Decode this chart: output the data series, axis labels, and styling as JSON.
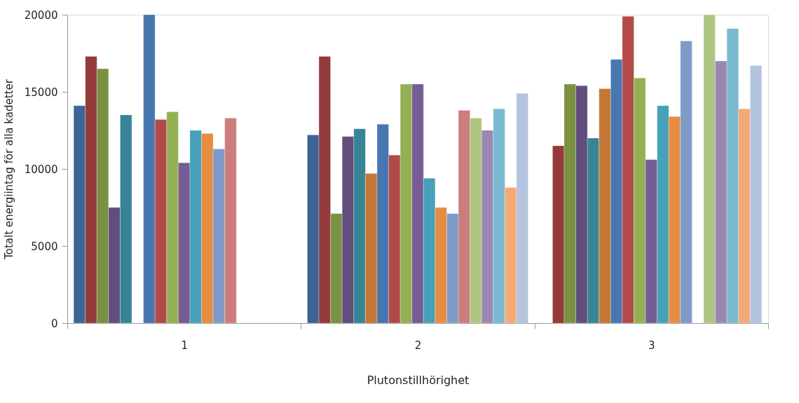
{
  "chart_data": {
    "type": "bar",
    "xlabel": "Plutonstillhörighet",
    "ylabel": "Totalt  energiintag för alla kadetter",
    "categories": [
      "1",
      "2",
      "3"
    ],
    "series": [
      {
        "color": "#3c6496",
        "values": [
          14100,
          12200,
          null
        ]
      },
      {
        "color": "#953a3a",
        "values": [
          17300,
          17300,
          11500
        ]
      },
      {
        "color": "#7b9142",
        "values": [
          16500,
          7100,
          15500
        ]
      },
      {
        "color": "#624d7c",
        "values": [
          7500,
          12100,
          15400
        ]
      },
      {
        "color": "#378497",
        "values": [
          13500,
          12600,
          12000
        ]
      },
      {
        "color": "#c57634",
        "values": [
          null,
          9700,
          15200
        ]
      },
      {
        "color": "#4877b0",
        "values": [
          20000,
          12900,
          17100
        ]
      },
      {
        "color": "#b24a48",
        "values": [
          13200,
          10900,
          19900
        ]
      },
      {
        "color": "#93b053",
        "values": [
          13700,
          15500,
          15900
        ]
      },
      {
        "color": "#765c95",
        "values": [
          10400,
          15500,
          10600
        ]
      },
      {
        "color": "#46a1b9",
        "values": [
          12500,
          9400,
          14100
        ]
      },
      {
        "color": "#e78c43",
        "values": [
          12300,
          7500,
          13400
        ]
      },
      {
        "color": "#7e9bc8",
        "values": [
          11300,
          7100,
          18300
        ]
      },
      {
        "color": "#cb7d7c",
        "values": [
          13300,
          13800,
          null
        ]
      },
      {
        "color": "#aec682",
        "values": [
          null,
          13300,
          20000
        ]
      },
      {
        "color": "#9a88b3",
        "values": [
          null,
          12500,
          17000
        ]
      },
      {
        "color": "#7ab9cf",
        "values": [
          null,
          13900,
          19100
        ]
      },
      {
        "color": "#f5a977",
        "values": [
          null,
          8800,
          13900
        ]
      },
      {
        "color": "#b4c4de",
        "values": [
          null,
          14900,
          16700
        ]
      }
    ],
    "ylim": [
      0,
      20000
    ],
    "yticks": [
      0,
      5000,
      10000,
      15000,
      20000
    ],
    "grid": false,
    "legend": false
  }
}
